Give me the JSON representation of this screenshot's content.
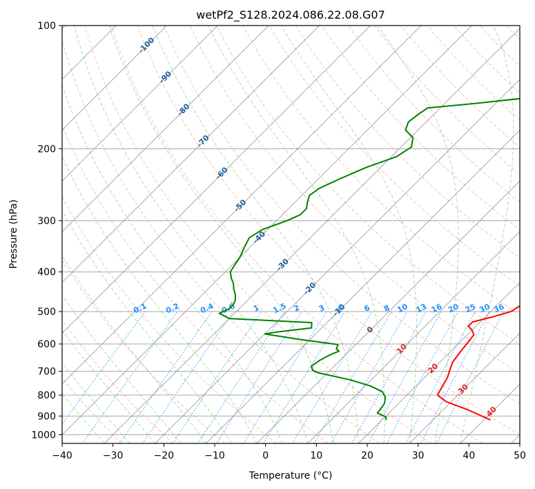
{
  "chart_data": {
    "type": "line",
    "chart_kind": "skew-T log-P diagram",
    "title": "wetPf2_S128.2024.086.22.08.G07",
    "xlabel": "Temperature (°C)",
    "ylabel": "Pressure (hPa)",
    "xlim": [
      -40,
      50
    ],
    "ylim": [
      1050,
      100
    ],
    "y_scale": "log",
    "grid": true,
    "x_ticks": [
      -40,
      -30,
      -20,
      -10,
      0,
      10,
      20,
      30,
      40,
      50
    ],
    "x_tick_labels": [
      "−40",
      "−30",
      "−20",
      "−10",
      "0",
      "10",
      "20",
      "30",
      "40",
      "50"
    ],
    "y_ticks": [
      1000,
      900,
      800,
      700,
      600,
      500,
      400,
      300,
      200,
      100
    ],
    "y_tick_labels": [
      "1000",
      "900",
      "800",
      "700",
      "600",
      "500",
      "400",
      "300",
      "200",
      "100"
    ],
    "colors": {
      "temperature": "#ff0000",
      "dewpoint": "#008000",
      "isotherm": "#999999",
      "dry_adiabat": "#ff8c69",
      "moist_adiabat": "#5cb85c",
      "mixing_ratio": "#1e90ff",
      "isotherm_label": "#1f5f9f",
      "adiabat_label": "#d62728"
    },
    "series": [
      {
        "name": "Temperature",
        "points": [
          [
            41.3,
            920
          ],
          [
            35,
            870
          ],
          [
            29,
            830
          ],
          [
            26,
            800
          ],
          [
            25.2,
            760
          ],
          [
            24.5,
            725
          ],
          [
            23.5,
            695
          ],
          [
            22.5,
            665
          ],
          [
            22,
            630
          ],
          [
            21.6,
            595
          ],
          [
            21.3,
            570
          ],
          [
            20,
            555
          ],
          [
            18.5,
            543
          ],
          [
            18.5,
            530
          ],
          [
            21.5,
            515
          ],
          [
            24,
            500
          ],
          [
            24.8,
            480
          ],
          [
            24.5,
            460
          ],
          [
            23.3,
            450
          ],
          [
            22.6,
            440
          ],
          [
            22.3,
            428
          ],
          [
            22.3,
            418
          ],
          [
            23,
            410
          ],
          [
            23.3,
            398
          ],
          [
            23,
            387
          ],
          [
            22.2,
            377
          ],
          [
            20.3,
            362
          ],
          [
            19,
            348
          ],
          [
            18,
            335
          ],
          [
            16.4,
            322
          ],
          [
            15.1,
            308
          ],
          [
            14,
            296
          ],
          [
            13.2,
            283
          ],
          [
            11.7,
            272
          ],
          [
            10,
            262
          ],
          [
            8,
            250
          ],
          [
            6,
            238
          ],
          [
            4,
            226
          ],
          [
            2.5,
            214
          ],
          [
            1.5,
            202
          ],
          [
            1.2,
            191
          ],
          [
            1,
            180
          ],
          [
            0.8,
            172
          ],
          [
            -0.3,
            160
          ],
          [
            -0.6,
            152
          ],
          [
            -0.5,
            142
          ],
          [
            -0.3,
            133
          ],
          [
            -0.1,
            125
          ],
          [
            -0.5,
            116
          ],
          [
            -0.5,
            108
          ],
          [
            -0.6,
            100
          ]
        ]
      },
      {
        "name": "Dewpoint",
        "points": [
          [
            20.8,
            920
          ],
          [
            20.2,
            905
          ],
          [
            17.7,
            885
          ],
          [
            17.5,
            860
          ],
          [
            17.2,
            838
          ],
          [
            16.2,
            810
          ],
          [
            14.5,
            785
          ],
          [
            11,
            760
          ],
          [
            6,
            735
          ],
          [
            -2,
            705
          ],
          [
            -3.5,
            695
          ],
          [
            -4.5,
            680
          ],
          [
            -4,
            658
          ],
          [
            -3,
            637
          ],
          [
            -2,
            625
          ],
          [
            -3,
            617
          ],
          [
            -3.5,
            602
          ],
          [
            -12,
            585
          ],
          [
            -20,
            567
          ],
          [
            -18,
            561
          ],
          [
            -12,
            548
          ],
          [
            -13,
            532
          ],
          [
            -30,
            520
          ],
          [
            -33,
            505
          ],
          [
            -32,
            493
          ],
          [
            -32,
            480
          ],
          [
            -32.5,
            468
          ],
          [
            -33.5,
            455
          ],
          [
            -35,
            440
          ],
          [
            -36,
            428
          ],
          [
            -37.5,
            415
          ],
          [
            -39,
            400
          ],
          [
            -39.5,
            385
          ],
          [
            -40,
            368
          ],
          [
            -41,
            350
          ],
          [
            -42,
            330
          ],
          [
            -41,
            315
          ],
          [
            -38,
            300
          ],
          [
            -36.5,
            290
          ],
          [
            -36.5,
            280
          ],
          [
            -37.6,
            270
          ],
          [
            -38.5,
            260
          ],
          [
            -38,
            250
          ],
          [
            -35.8,
            237
          ],
          [
            -32.8,
            222
          ],
          [
            -29,
            209
          ],
          [
            -28,
            198
          ],
          [
            -29.5,
            188
          ],
          [
            -32.5,
            180
          ],
          [
            -33.5,
            172
          ],
          [
            -33,
            164
          ],
          [
            -32.5,
            159
          ],
          [
            -24,
            155
          ],
          [
            -14.5,
            150
          ],
          [
            -10.8,
            144
          ],
          [
            -8.5,
            138
          ],
          [
            -3.6,
            133
          ],
          [
            -1.4,
            128
          ],
          [
            -0.8,
            120
          ],
          [
            -0.5,
            112
          ],
          [
            0.3,
            106
          ],
          [
            0.4,
            100
          ]
        ]
      }
    ],
    "isotherm_labels": [
      {
        "label": "-100",
        "t": -100,
        "p": 112
      },
      {
        "label": "-90",
        "t": -90,
        "p": 134
      },
      {
        "label": "-80",
        "t": -80,
        "p": 161
      },
      {
        "label": "-70",
        "t": -70,
        "p": 192
      },
      {
        "label": "-60",
        "t": -60,
        "p": 230
      },
      {
        "label": "-50",
        "t": -50,
        "p": 276
      },
      {
        "label": "-40",
        "t": -40,
        "p": 330
      },
      {
        "label": "-30",
        "t": -30,
        "p": 385
      },
      {
        "label": "-20",
        "t": -20,
        "p": 440
      },
      {
        "label": "-10",
        "t": -10,
        "p": 497
      },
      {
        "label": "0",
        "t": 0,
        "p": 555
      },
      {
        "label": "10",
        "t": 10,
        "p": 618
      },
      {
        "label": "20",
        "t": 20,
        "p": 690
      },
      {
        "label": "30",
        "t": 30,
        "p": 775
      },
      {
        "label": "40",
        "t": 40,
        "p": 880
      }
    ],
    "mixing_ratio_labels": [
      "0.1",
      "0.2",
      "0.4",
      "0.6",
      "1",
      "1.5",
      "2",
      "3",
      "4",
      "6",
      "8",
      "10",
      "13",
      "16",
      "20",
      "25",
      "30",
      "36"
    ]
  }
}
